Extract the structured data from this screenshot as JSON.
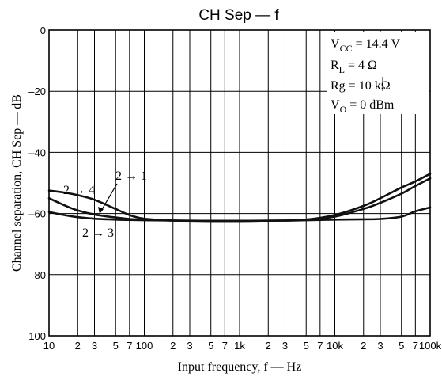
{
  "chart_data": {
    "type": "line",
    "title": "CH Sep — f",
    "xlabel": "Input frequency, f — Hz",
    "ylabel": "Channel separation, CH Sep — dB",
    "xscale": "log",
    "xlim": [
      10,
      100000
    ],
    "ylim": [
      -100,
      0
    ],
    "grid": true,
    "x_tick_labels": [
      {
        "value": 10,
        "label": "10"
      },
      {
        "value": 20,
        "label": "2"
      },
      {
        "value": 30,
        "label": "3"
      },
      {
        "value": 50,
        "label": "5"
      },
      {
        "value": 70,
        "label": "7"
      },
      {
        "value": 100,
        "label": "100"
      },
      {
        "value": 200,
        "label": "2"
      },
      {
        "value": 300,
        "label": "3"
      },
      {
        "value": 500,
        "label": "5"
      },
      {
        "value": 700,
        "label": "7"
      },
      {
        "value": 1000,
        "label": "1k"
      },
      {
        "value": 2000,
        "label": "2"
      },
      {
        "value": 3000,
        "label": "3"
      },
      {
        "value": 5000,
        "label": "5"
      },
      {
        "value": 7000,
        "label": "7"
      },
      {
        "value": 10000,
        "label": "10k"
      },
      {
        "value": 20000,
        "label": "2"
      },
      {
        "value": 30000,
        "label": "3"
      },
      {
        "value": 50000,
        "label": "5"
      },
      {
        "value": 70000,
        "label": "7"
      },
      {
        "value": 100000,
        "label": "100k"
      }
    ],
    "y_tick_labels": [
      {
        "value": 0,
        "label": "0"
      },
      {
        "value": -20,
        "label": "–20"
      },
      {
        "value": -40,
        "label": "–40"
      },
      {
        "value": -60,
        "label": "–60"
      },
      {
        "value": -80,
        "label": "–80"
      },
      {
        "value": -100,
        "label": "–100"
      }
    ],
    "conditions": [
      {
        "main": "V",
        "sub": "CC",
        "rest": " = 14.4 V"
      },
      {
        "main": "R",
        "sub": "L",
        "rest": " = 4 Ω"
      },
      {
        "main": "Rg = 10 kΩ",
        "sub": "",
        "rest": ""
      },
      {
        "main": "V",
        "sub": "O",
        "rest": " = 0 dBm"
      }
    ],
    "series": [
      {
        "name": "2 → 4",
        "x": [
          10,
          15,
          20,
          30,
          50,
          70,
          100,
          200,
          500,
          1000,
          3000,
          5000,
          10000,
          20000,
          30000,
          50000,
          70000,
          100000
        ],
        "y": [
          -52.5,
          -53.2,
          -54,
          -55.5,
          -58.5,
          -60.5,
          -61.7,
          -62.3,
          -62.4,
          -62.4,
          -62.3,
          -62,
          -60.5,
          -57.5,
          -55,
          -51.5,
          -49.5,
          -47
        ]
      },
      {
        "name": "2 → 1",
        "x": [
          10,
          15,
          20,
          30,
          50,
          70,
          100,
          200,
          500,
          1000,
          3000,
          5000,
          10000,
          20000,
          30000,
          50000,
          70000,
          100000
        ],
        "y": [
          -55,
          -57.5,
          -59,
          -60.3,
          -61.3,
          -61.8,
          -62.1,
          -62.3,
          -62.4,
          -62.4,
          -62.3,
          -62,
          -61,
          -58.5,
          -56.5,
          -53.5,
          -51,
          -48.5
        ]
      },
      {
        "name": "2 → 3",
        "x": [
          10,
          15,
          20,
          30,
          50,
          70,
          100,
          200,
          500,
          1000,
          3000,
          5000,
          10000,
          20000,
          30000,
          50000,
          70000,
          100000
        ],
        "y": [
          -59.5,
          -60.6,
          -61.2,
          -61.7,
          -62,
          -62.1,
          -62.2,
          -62.3,
          -62.4,
          -62.4,
          -62.3,
          -62.2,
          -62,
          -61.9,
          -61.8,
          -61,
          -59.3,
          -58
        ]
      }
    ],
    "annotations": [
      {
        "text": "2 → 4",
        "series": "2 → 4"
      },
      {
        "text": "2 → 1",
        "series": "2 → 1"
      },
      {
        "text": "2 → 3",
        "series": "2 → 3"
      }
    ]
  }
}
